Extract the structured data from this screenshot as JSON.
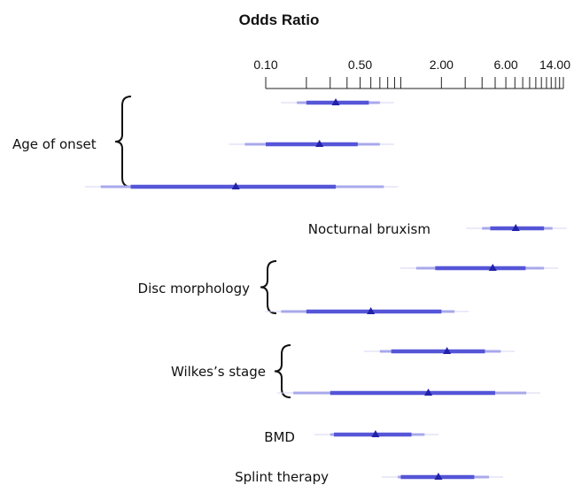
{
  "chart_data": {
    "type": "forest",
    "title": "Odds Ratio",
    "x_scale": "log",
    "xlim": [
      0.1,
      16
    ],
    "tick_labels": [
      "0.10",
      "0.50",
      "2.00",
      "6.00",
      "14.00"
    ],
    "tick_values": [
      0.1,
      0.2,
      0.3,
      0.4,
      0.5,
      0.6,
      0.7,
      0.8,
      0.9,
      1,
      2,
      3,
      4,
      5,
      6,
      7,
      8,
      9,
      10,
      11,
      12,
      13,
      14,
      15,
      16
    ],
    "groups": [
      {
        "label": "Age of onset",
        "rows": [
          0,
          1,
          2
        ]
      },
      {
        "label": "Nocturnal  bruxism",
        "rows": [
          3
        ]
      },
      {
        "label": "Disc morphology",
        "rows": [
          4,
          5
        ]
      },
      {
        "label": "Wilkes’s stage",
        "rows": [
          6,
          7
        ]
      },
      {
        "label": "BMD",
        "rows": [
          8
        ]
      },
      {
        "label": "Splint therapy",
        "rows": [
          9
        ]
      }
    ],
    "rows": [
      {
        "or": 0.33,
        "ci80": [
          0.2,
          0.58
        ],
        "ci95": [
          0.17,
          0.7
        ]
      },
      {
        "or": 0.25,
        "ci80": [
          0.1,
          0.48
        ],
        "ci95": [
          0.07,
          0.7
        ]
      },
      {
        "or": 0.06,
        "ci80": [
          0.01,
          0.33
        ],
        "ci95": [
          0.006,
          0.75
        ]
      },
      {
        "or": 7.1,
        "ci80": [
          4.6,
          11.5
        ],
        "ci95": [
          4.0,
          13.3
        ]
      },
      {
        "or": 4.8,
        "ci80": [
          1.8,
          8.4
        ],
        "ci95": [
          1.3,
          11.5
        ]
      },
      {
        "or": 0.6,
        "ci80": [
          0.2,
          2.0
        ],
        "ci95": [
          0.13,
          2.5
        ]
      },
      {
        "or": 2.2,
        "ci80": [
          0.85,
          4.2
        ],
        "ci95": [
          0.7,
          5.5
        ]
      },
      {
        "or": 1.6,
        "ci80": [
          0.3,
          5.0
        ],
        "ci95": [
          0.16,
          8.5
        ]
      },
      {
        "or": 0.65,
        "ci80": [
          0.32,
          1.2
        ],
        "ci95": [
          0.3,
          1.5
        ]
      },
      {
        "or": 1.9,
        "ci80": [
          1.0,
          3.5
        ],
        "ci95": [
          0.95,
          4.5
        ]
      }
    ],
    "colors": {
      "point": "#2222a8",
      "ci80": "#5555d8",
      "ci95": "#a8a8ec",
      "whisker": "#d6d6f6"
    }
  }
}
